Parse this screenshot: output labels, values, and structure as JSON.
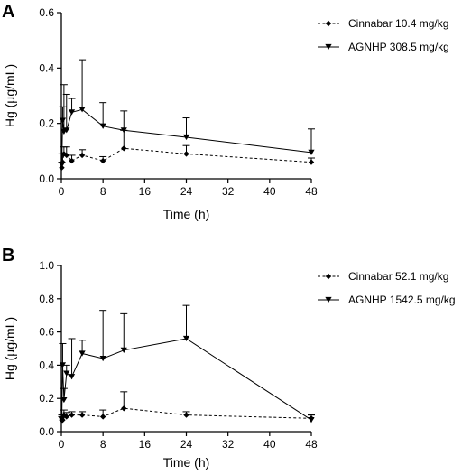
{
  "chart_data": [
    {
      "panel": "A",
      "type": "line",
      "xlabel": "Time (h)",
      "ylabel": "Hg (µg/mL)",
      "xlim": [
        0,
        48
      ],
      "ylim": [
        0,
        0.6
      ],
      "xticks": [
        0,
        8,
        16,
        24,
        32,
        40,
        48
      ],
      "yticks": [
        0.0,
        0.2,
        0.4,
        0.6
      ],
      "ytick_labels": [
        "0.0",
        "0.2",
        "0.4",
        "0.6"
      ],
      "grid": false,
      "legend": "top-right",
      "series": [
        {
          "name": "Cinnabar 10.4 mg/kg",
          "marker": "diamond",
          "line": "dashed",
          "x": [
            0.083,
            0.25,
            0.5,
            1,
            2,
            4,
            8,
            12,
            24,
            48
          ],
          "y": [
            0.04,
            0.06,
            0.09,
            0.085,
            0.065,
            0.085,
            0.065,
            0.11,
            0.09,
            0.06
          ],
          "error": [
            0.02,
            0.03,
            0.025,
            0.03,
            0.02,
            0.02,
            0.015,
            0.065,
            0.03,
            0.015
          ]
        },
        {
          "name": "AGNHP 308.5 mg/kg",
          "marker": "triangle-down",
          "line": "solid",
          "x": [
            0.083,
            0.25,
            0.5,
            1,
            2,
            4,
            8,
            12,
            24,
            48
          ],
          "y": [
            0.05,
            0.21,
            0.17,
            0.175,
            0.24,
            0.25,
            0.19,
            0.175,
            0.15,
            0.095
          ],
          "error": [
            0.04,
            0.05,
            0.17,
            0.13,
            0.05,
            0.18,
            0.085,
            0.07,
            0.07,
            0.085
          ]
        }
      ]
    },
    {
      "panel": "B",
      "type": "line",
      "xlabel": "Time (h)",
      "ylabel": "Hg (µg/mL)",
      "xlim": [
        0,
        48
      ],
      "ylim": [
        0,
        1.0
      ],
      "xticks": [
        0,
        8,
        16,
        24,
        32,
        40,
        48
      ],
      "yticks": [
        0.0,
        0.2,
        0.4,
        0.6,
        0.8,
        1.0
      ],
      "ytick_labels": [
        "0.0",
        "0.2",
        "0.4",
        "0.6",
        "0.8",
        "1.0"
      ],
      "grid": false,
      "legend": "top-right",
      "series": [
        {
          "name": "Cinnabar 52.1 mg/kg",
          "marker": "diamond",
          "line": "dashed",
          "x": [
            0.083,
            0.25,
            0.5,
            1,
            2,
            4,
            8,
            12,
            24,
            48
          ],
          "y": [
            0.07,
            0.07,
            0.1,
            0.09,
            0.1,
            0.1,
            0.09,
            0.14,
            0.1,
            0.08
          ],
          "error": [
            0.02,
            0.03,
            0.03,
            0.025,
            0.02,
            0.02,
            0.04,
            0.1,
            0.02,
            0.02
          ]
        },
        {
          "name": "AGNHP 1542.5 mg/kg",
          "marker": "triangle-down",
          "line": "solid",
          "x": [
            0.083,
            0.25,
            0.5,
            1,
            2,
            4,
            8,
            12,
            24,
            48
          ],
          "y": [
            0.07,
            0.4,
            0.19,
            0.35,
            0.33,
            0.47,
            0.44,
            0.49,
            0.56,
            0.07
          ],
          "error": [
            0.03,
            0.13,
            0.07,
            0.05,
            0.23,
            0.08,
            0.29,
            0.22,
            0.2,
            0.03
          ]
        }
      ]
    }
  ]
}
